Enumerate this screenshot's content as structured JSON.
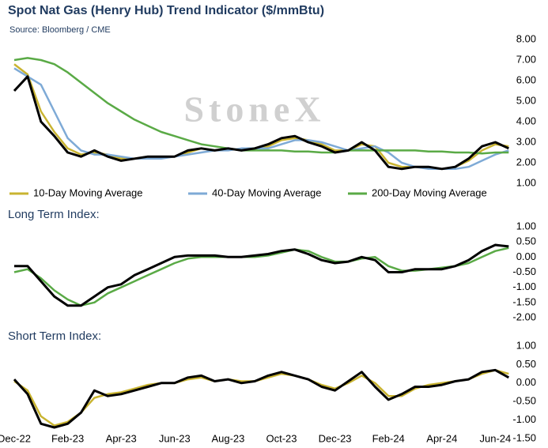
{
  "chart_data": [
    {
      "type": "line",
      "title": "Spot Nat Gas (Henry Hub) Trend Indicator ($/mmBtu)",
      "subtitle": "Source: Bloomberg / CME",
      "watermark": "StoneX",
      "ylim": [
        1,
        8
      ],
      "yticks": [
        {
          "value": 1,
          "label": "1.00"
        },
        {
          "value": 2,
          "label": "2.00"
        },
        {
          "value": 3,
          "label": "3.00"
        },
        {
          "value": 4,
          "label": "4.00"
        },
        {
          "value": 5,
          "label": "5.00"
        },
        {
          "value": 6,
          "label": "6.00"
        },
        {
          "value": 7,
          "label": "7.00"
        },
        {
          "value": 8,
          "label": "8.00"
        }
      ],
      "legend": "bottom",
      "series": [
        {
          "color": "#000000",
          "values": [
            5.5,
            6.2,
            4.0,
            3.3,
            2.5,
            2.3,
            2.6,
            2.3,
            2.1,
            2.2,
            2.3,
            2.3,
            2.3,
            2.6,
            2.7,
            2.6,
            2.7,
            2.6,
            2.7,
            2.9,
            3.2,
            3.3,
            3.0,
            2.8,
            2.5,
            2.6,
            3.0,
            2.6,
            1.8,
            1.7,
            1.8,
            1.8,
            1.7,
            1.8,
            2.2,
            2.8,
            3.0,
            2.7
          ]
        },
        {
          "name": "10-Day Moving Average",
          "color": "#c9b431",
          "values": [
            6.8,
            6.3,
            4.5,
            3.5,
            2.7,
            2.4,
            2.5,
            2.4,
            2.2,
            2.2,
            2.3,
            2.3,
            2.3,
            2.5,
            2.7,
            2.6,
            2.7,
            2.6,
            2.7,
            2.8,
            3.1,
            3.2,
            3.1,
            2.9,
            2.6,
            2.6,
            2.9,
            2.8,
            2.0,
            1.8,
            1.8,
            1.8,
            1.7,
            1.8,
            2.1,
            2.6,
            2.9,
            2.8
          ]
        },
        {
          "name": "40-Day Moving Average",
          "color": "#7eaad6",
          "values": [
            6.6,
            6.2,
            5.8,
            4.5,
            3.2,
            2.6,
            2.4,
            2.4,
            2.3,
            2.2,
            2.2,
            2.2,
            2.3,
            2.4,
            2.5,
            2.6,
            2.6,
            2.7,
            2.7,
            2.7,
            2.9,
            3.1,
            3.1,
            3.0,
            2.8,
            2.6,
            2.7,
            2.8,
            2.5,
            2.0,
            1.8,
            1.7,
            1.7,
            1.7,
            1.8,
            2.1,
            2.4,
            2.6
          ]
        },
        {
          "name": "200-Day Moving Average",
          "color": "#5aaa46",
          "values": [
            7.0,
            7.1,
            7.0,
            6.8,
            6.4,
            5.9,
            5.4,
            4.9,
            4.5,
            4.1,
            3.8,
            3.5,
            3.3,
            3.1,
            2.9,
            2.8,
            2.7,
            2.6,
            2.6,
            2.6,
            2.6,
            2.55,
            2.55,
            2.5,
            2.5,
            2.6,
            2.6,
            2.6,
            2.6,
            2.6,
            2.6,
            2.55,
            2.55,
            2.5,
            2.5,
            2.45,
            2.5,
            2.5
          ]
        }
      ]
    },
    {
      "type": "line",
      "title": "Long Term Index:",
      "ylim": [
        -2,
        1
      ],
      "yticks": [
        {
          "value": -2,
          "label": "-2.00"
        },
        {
          "value": -1.5,
          "label": "-1.50"
        },
        {
          "value": -1,
          "label": "-1.00"
        },
        {
          "value": -0.5,
          "label": "-0.50"
        },
        {
          "value": 0,
          "label": "0.00"
        },
        {
          "value": 0.5,
          "label": "0.50"
        },
        {
          "value": 1,
          "label": "1.00"
        }
      ],
      "series": [
        {
          "color": "#000000",
          "values": [
            -0.3,
            -0.3,
            -0.8,
            -1.3,
            -1.6,
            -1.6,
            -1.3,
            -1.0,
            -0.9,
            -0.6,
            -0.4,
            -0.2,
            0.0,
            0.05,
            0.05,
            0.05,
            0.0,
            0.0,
            0.05,
            0.1,
            0.2,
            0.25,
            0.1,
            -0.1,
            -0.2,
            -0.15,
            0.0,
            -0.1,
            -0.5,
            -0.5,
            -0.4,
            -0.4,
            -0.4,
            -0.3,
            -0.1,
            0.2,
            0.4,
            0.35
          ]
        },
        {
          "color": "#5aaa46",
          "values": [
            -0.5,
            -0.4,
            -0.7,
            -1.1,
            -1.4,
            -1.6,
            -1.5,
            -1.2,
            -1.0,
            -0.8,
            -0.6,
            -0.4,
            -0.2,
            -0.05,
            0.0,
            0.0,
            0.0,
            0.0,
            0.0,
            0.05,
            0.15,
            0.25,
            0.2,
            0.0,
            -0.15,
            -0.15,
            -0.05,
            0.0,
            -0.3,
            -0.45,
            -0.45,
            -0.4,
            -0.35,
            -0.3,
            -0.2,
            0.0,
            0.2,
            0.3
          ]
        }
      ]
    },
    {
      "type": "line",
      "title": "Short Term Index:",
      "categories": [
        "Dec-22",
        null,
        null,
        null,
        "Feb-23",
        null,
        null,
        null,
        "Apr-23",
        null,
        null,
        null,
        "Jun-23",
        null,
        null,
        null,
        "Aug-23",
        null,
        null,
        null,
        "Oct-23",
        null,
        null,
        null,
        "Dec-23",
        null,
        null,
        null,
        "Feb-24",
        null,
        null,
        null,
        "Apr-24",
        null,
        null,
        null,
        "Jun-24",
        null
      ],
      "ylim": [
        -1.5,
        1
      ],
      "yticks": [
        {
          "value": -1.5,
          "label": "-1.50"
        },
        {
          "value": -1,
          "label": "-1.00"
        },
        {
          "value": -0.5,
          "label": "-0.50"
        },
        {
          "value": 0,
          "label": "0.00"
        },
        {
          "value": 0.5,
          "label": "0.50"
        },
        {
          "value": 1,
          "label": "1.00"
        }
      ],
      "series": [
        {
          "color": "#000000",
          "values": [
            0.1,
            -0.3,
            -1.1,
            -1.2,
            -1.1,
            -0.8,
            -0.2,
            -0.35,
            -0.3,
            -0.2,
            -0.1,
            0.0,
            0.0,
            0.15,
            0.2,
            0.05,
            0.1,
            0.0,
            0.05,
            0.2,
            0.3,
            0.2,
            0.1,
            -0.1,
            -0.2,
            0.05,
            0.3,
            -0.1,
            -0.45,
            -0.3,
            -0.1,
            -0.1,
            -0.05,
            0.05,
            0.1,
            0.3,
            0.35,
            0.15
          ]
        },
        {
          "color": "#c9b431",
          "values": [
            0.05,
            -0.2,
            -0.9,
            -1.15,
            -1.05,
            -0.8,
            -0.4,
            -0.3,
            -0.25,
            -0.15,
            -0.05,
            0.0,
            0.0,
            0.1,
            0.15,
            0.05,
            0.1,
            0.05,
            0.05,
            0.15,
            0.25,
            0.2,
            0.1,
            -0.05,
            -0.15,
            0.0,
            0.2,
            0.0,
            -0.35,
            -0.35,
            -0.15,
            -0.05,
            0.0,
            0.05,
            0.1,
            0.25,
            0.35,
            0.25
          ]
        }
      ]
    }
  ]
}
